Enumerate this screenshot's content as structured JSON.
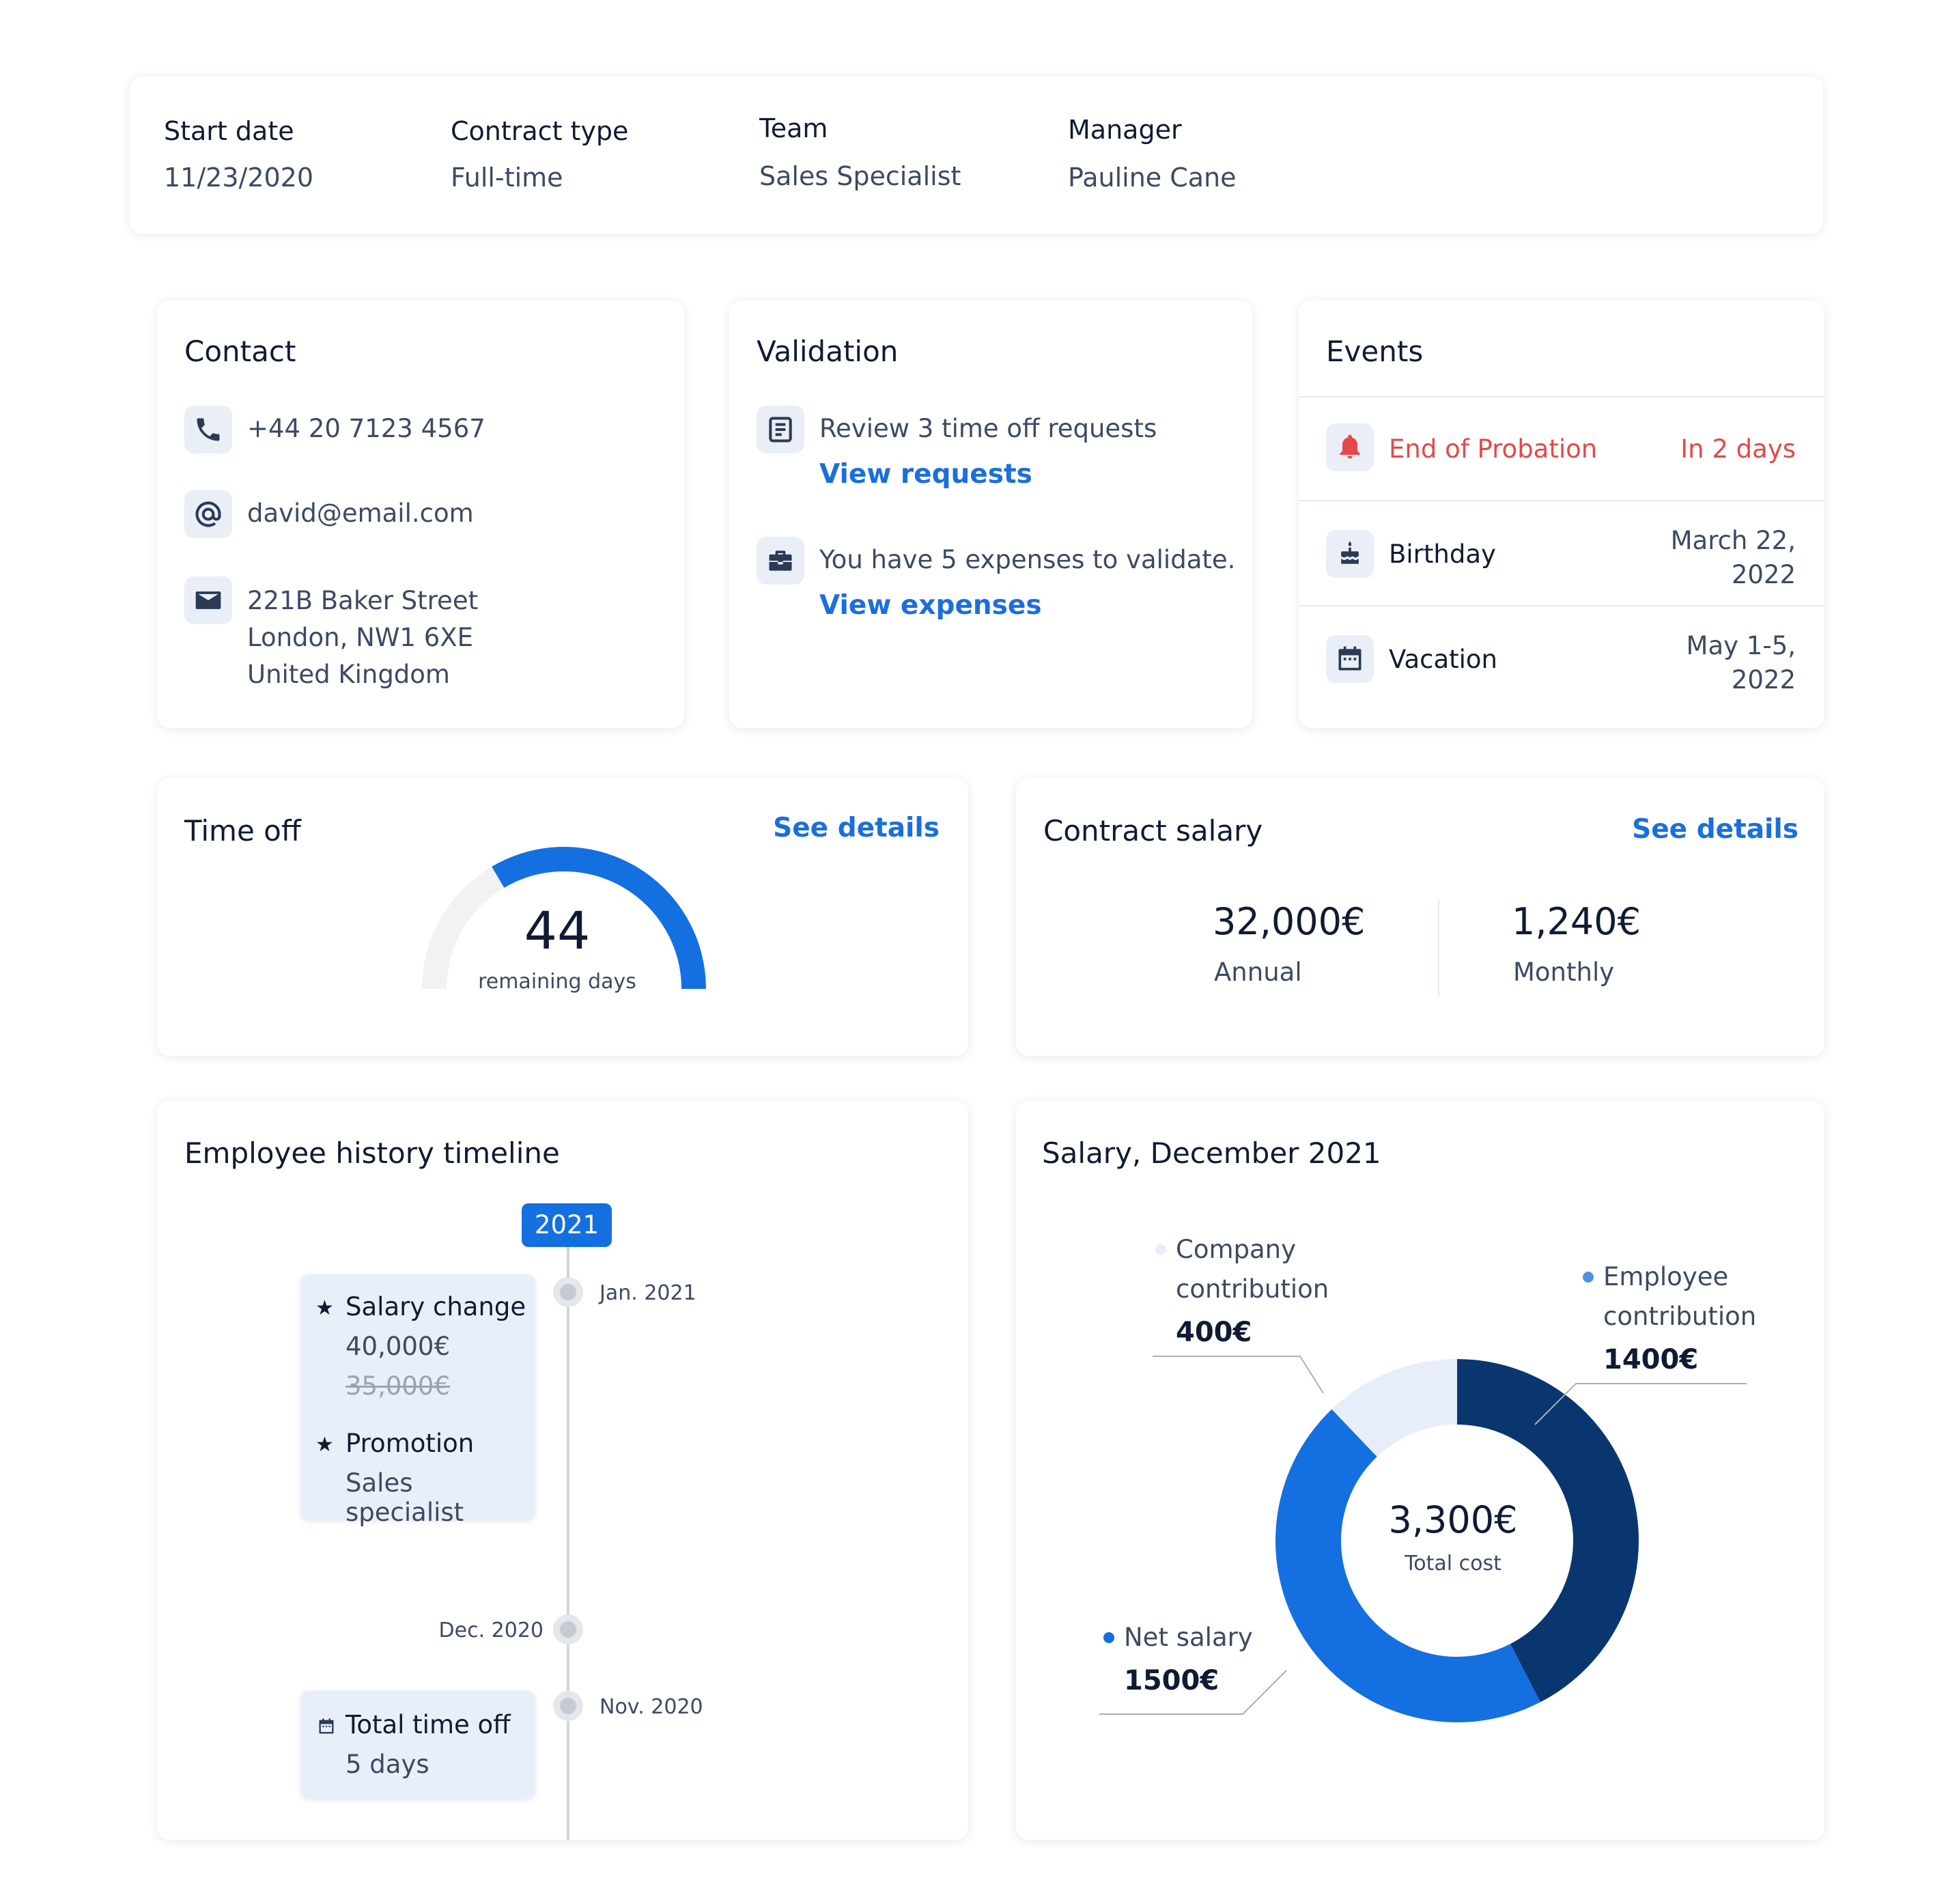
{
  "summary": [
    {
      "label": "Start date",
      "value": "11/23/2020"
    },
    {
      "label": "Contract type",
      "value": "Full-time"
    },
    {
      "label": "Team",
      "value": "Sales Specialist"
    },
    {
      "label": "Manager",
      "value": "Pauline Cane"
    }
  ],
  "contact": {
    "title": "Contact",
    "phone": "+44 20 7123 4567",
    "email": "david@email.com",
    "address": [
      "221B Baker Street",
      "London, NW1 6XE",
      "United Kingdom"
    ]
  },
  "validation": {
    "title": "Validation",
    "items": [
      {
        "icon": "document-icon",
        "text": "Review 3 time off requests",
        "link": "View requests"
      },
      {
        "icon": "briefcase-icon",
        "text": "You have 5 expenses to validate.",
        "link": "View expenses"
      }
    ]
  },
  "events": {
    "title": "Events",
    "items": [
      {
        "icon": "bell-icon",
        "name": "End of Probation",
        "date": [
          "In 2 days"
        ],
        "alert": true
      },
      {
        "icon": "cake-icon",
        "name": "Birthday",
        "date": [
          "March 22,",
          "2022"
        ]
      },
      {
        "icon": "calendar-icon",
        "name": "Vacation",
        "date": [
          "May 1-5,",
          "2022"
        ]
      }
    ]
  },
  "time_off": {
    "title": "Time off",
    "details_link": "See details",
    "remaining": "44",
    "remaining_label": "remaining days",
    "gauge_fraction": 0.67
  },
  "contract_salary": {
    "title": "Contract salary",
    "details_link": "See details",
    "annual_value": "32,000€",
    "annual_label": "Annual",
    "monthly_value": "1,240€",
    "monthly_label": "Monthly"
  },
  "timeline": {
    "title": "Employee history timeline",
    "year": "2021",
    "dates": {
      "jan": "Jan. 2021",
      "dec": "Dec. 2020",
      "nov": "Nov. 2020"
    },
    "card1": {
      "salary_title": "Salary change",
      "salary_new": "40,000€",
      "salary_old": "35,000€",
      "promotion_title": "Promotion",
      "promotion_value": "Sales specialist"
    },
    "card2": {
      "title": "Total time off",
      "value": "5 days"
    }
  },
  "salary_chart": {
    "title": "Salary, December 2021",
    "center_value": "3,300€",
    "center_label": "Total cost",
    "company_label": [
      "Company",
      "contribution"
    ],
    "company_value": "400€",
    "employee_label": [
      "Employee",
      "contribution"
    ],
    "employee_value": "1400€",
    "net_label": "Net salary",
    "net_value": "1500€"
  },
  "chart_data": {
    "type": "pie",
    "title": "Salary, December 2021",
    "categories": [
      "Employee contribution",
      "Net salary",
      "Company contribution"
    ],
    "values": [
      1400,
      1500,
      400
    ],
    "colors": [
      "#0a3670",
      "#1470e0",
      "#e7eef9"
    ],
    "total": 3300
  },
  "colors": {
    "accent": "#1a6fdd",
    "alert": "#e54848",
    "navy": "#0a3670",
    "blue": "#1470e0"
  }
}
